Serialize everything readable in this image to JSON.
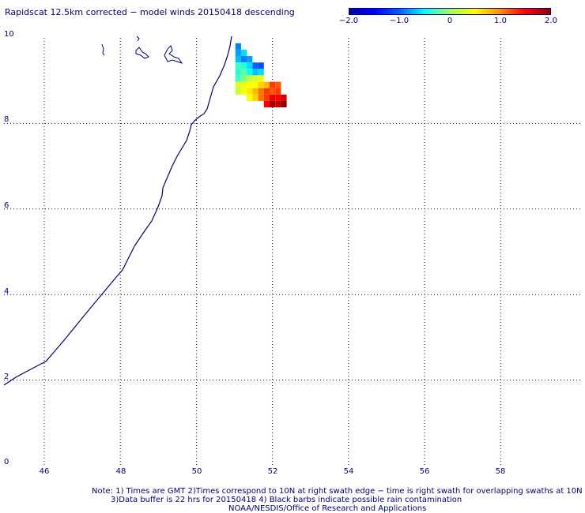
{
  "title": "Rapidscat 12.5km corrected − model winds 20150418 descending",
  "colorbar": {
    "ticks": [
      "−2.0",
      "−1.0",
      "0",
      "1.0",
      "2.0"
    ],
    "range": [
      -2.0,
      2.0
    ],
    "colors": [
      "#0000a0",
      "#0000ff",
      "#0060ff",
      "#00ffff",
      "#a0ff60",
      "#ffff00",
      "#ff9000",
      "#ff0000",
      "#900000"
    ]
  },
  "map": {
    "lon_labels": [
      "46",
      "48",
      "50",
      "52",
      "54",
      "56",
      "58"
    ],
    "lat_labels": [
      "10",
      "8",
      "6",
      "4",
      "2",
      "0"
    ],
    "gridline_color": "#00008b",
    "coast_color": "#00007a"
  },
  "chart_data": {
    "type": "heatmap",
    "xlim": [
      45,
      59.5
    ],
    "ylim": [
      0,
      10
    ],
    "cells": [
      {
        "lon": 51.1,
        "lat": 9.8,
        "value": -0.9
      },
      {
        "lon": 51.1,
        "lat": 9.65,
        "value": -0.8
      },
      {
        "lon": 51.25,
        "lat": 9.65,
        "value": -0.6
      },
      {
        "lon": 51.1,
        "lat": 9.5,
        "value": -0.7
      },
      {
        "lon": 51.25,
        "lat": 9.5,
        "value": -0.9
      },
      {
        "lon": 51.4,
        "lat": 9.5,
        "value": -0.8
      },
      {
        "lon": 51.1,
        "lat": 9.35,
        "value": -0.3
      },
      {
        "lon": 51.25,
        "lat": 9.35,
        "value": -0.4
      },
      {
        "lon": 51.4,
        "lat": 9.35,
        "value": -0.6
      },
      {
        "lon": 51.55,
        "lat": 9.35,
        "value": -1.0
      },
      {
        "lon": 51.7,
        "lat": 9.35,
        "value": -1.1
      },
      {
        "lon": 51.1,
        "lat": 9.2,
        "value": -0.4
      },
      {
        "lon": 51.25,
        "lat": 9.2,
        "value": -0.2
      },
      {
        "lon": 51.4,
        "lat": 9.2,
        "value": -0.5
      },
      {
        "lon": 51.55,
        "lat": 9.2,
        "value": -0.7
      },
      {
        "lon": 51.7,
        "lat": 9.2,
        "value": -0.6
      },
      {
        "lon": 51.1,
        "lat": 9.05,
        "value": -0.3
      },
      {
        "lon": 51.25,
        "lat": 9.05,
        "value": -0.1
      },
      {
        "lon": 51.4,
        "lat": 9.05,
        "value": 0.2
      },
      {
        "lon": 51.55,
        "lat": 9.05,
        "value": 0.3
      },
      {
        "lon": 51.7,
        "lat": 9.05,
        "value": 0.4
      },
      {
        "lon": 51.1,
        "lat": 8.9,
        "value": 0.3
      },
      {
        "lon": 51.25,
        "lat": 8.9,
        "value": 0.4
      },
      {
        "lon": 51.4,
        "lat": 8.9,
        "value": 0.5
      },
      {
        "lon": 51.55,
        "lat": 8.9,
        "value": 0.5
      },
      {
        "lon": 51.7,
        "lat": 8.9,
        "value": 0.7
      },
      {
        "lon": 51.85,
        "lat": 8.9,
        "value": 0.8
      },
      {
        "lon": 52.0,
        "lat": 8.9,
        "value": 1.3
      },
      {
        "lon": 52.15,
        "lat": 8.9,
        "value": 1.2
      },
      {
        "lon": 51.1,
        "lat": 8.75,
        "value": 0.2
      },
      {
        "lon": 51.25,
        "lat": 8.75,
        "value": 0.5
      },
      {
        "lon": 51.4,
        "lat": 8.75,
        "value": 0.6
      },
      {
        "lon": 51.55,
        "lat": 8.75,
        "value": 0.8
      },
      {
        "lon": 51.7,
        "lat": 8.75,
        "value": 1.1
      },
      {
        "lon": 51.85,
        "lat": 8.75,
        "value": 1.3
      },
      {
        "lon": 52.0,
        "lat": 8.75,
        "value": 1.2
      },
      {
        "lon": 52.15,
        "lat": 8.75,
        "value": 1.3
      },
      {
        "lon": 51.4,
        "lat": 8.6,
        "value": 0.5
      },
      {
        "lon": 51.55,
        "lat": 8.6,
        "value": 0.7
      },
      {
        "lon": 51.7,
        "lat": 8.6,
        "value": 1.1
      },
      {
        "lon": 51.85,
        "lat": 8.6,
        "value": 1.3
      },
      {
        "lon": 52.0,
        "lat": 8.6,
        "value": 1.6
      },
      {
        "lon": 52.15,
        "lat": 8.6,
        "value": 1.5
      },
      {
        "lon": 52.3,
        "lat": 8.6,
        "value": 1.7
      },
      {
        "lon": 51.85,
        "lat": 8.45,
        "value": 1.5
      },
      {
        "lon": 52.0,
        "lat": 8.45,
        "value": 1.9
      },
      {
        "lon": 52.15,
        "lat": 8.45,
        "value": 1.8
      },
      {
        "lon": 52.3,
        "lat": 8.45,
        "value": 2.0
      }
    ]
  },
  "notes": {
    "line1": "Note: 1) Times are GMT 2)Times correspond to 10N at right swath edge − time is right swath for overlapping swaths at 10N",
    "line2": "3)Data buffer is 22 hrs for 20150418 4) Black barbs indicate possible rain contamination",
    "line3": "NOAA/NESDIS/Office of Research and Applications"
  }
}
